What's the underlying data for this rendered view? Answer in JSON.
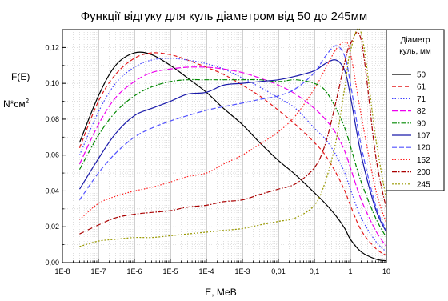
{
  "chart_data": {
    "type": "line",
    "title": "Функції відгуку для куль діаметром від 50 до 245мм",
    "xlabel": "E, МеВ",
    "ylabel": "F(E)",
    "ylabel_unit": "N*см",
    "ylabel_unit_sup": "2",
    "x_scale": "log",
    "xlim": [
      1e-08,
      10
    ],
    "ylim": [
      0,
      0.13
    ],
    "grid": true,
    "legend_position": "right",
    "x_ticks": [
      1e-08,
      1e-07,
      1e-06,
      1e-05,
      0.0001,
      0.001,
      0.01,
      0.1,
      1,
      10
    ],
    "x_tick_labels": [
      "1E-8",
      "1E-7",
      "1E-6",
      "1E-5",
      "1E-4",
      "1E-3",
      "0,01",
      "0,1",
      "1",
      "10"
    ],
    "y_ticks": [
      0,
      0.02,
      0.04,
      0.06,
      0.08,
      0.1,
      0.12
    ],
    "y_tick_labels": [
      "0,00",
      "0,02",
      "0,04",
      "0,06",
      "0,08",
      "0,10",
      "0,12"
    ],
    "legend_title": [
      "Діаметр",
      "куль, мм"
    ],
    "x": [
      3e-08,
      1e-07,
      3e-07,
      1e-06,
      3e-06,
      1e-05,
      3e-05,
      0.0001,
      0.0003,
      0.001,
      0.003,
      0.01,
      0.03,
      0.1,
      0.2,
      0.4,
      0.7,
      1,
      2,
      5,
      10
    ],
    "series": [
      {
        "name": "50",
        "color": "#000000",
        "dash": "",
        "width": 1.2,
        "values": [
          0.067,
          0.093,
          0.11,
          0.117,
          0.116,
          0.11,
          0.103,
          0.095,
          0.086,
          0.077,
          0.067,
          0.057,
          0.049,
          0.039,
          0.033,
          0.026,
          0.019,
          0.013,
          0.006,
          0.002,
          0.001
        ]
      },
      {
        "name": "61",
        "color": "#e41a1c",
        "dash": "5,3",
        "width": 1.2,
        "values": [
          0.064,
          0.09,
          0.105,
          0.114,
          0.117,
          0.116,
          0.113,
          0.109,
          0.105,
          0.099,
          0.093,
          0.085,
          0.077,
          0.067,
          0.06,
          0.05,
          0.04,
          0.032,
          0.018,
          0.008,
          0.004
        ]
      },
      {
        "name": "71",
        "color": "#4040ff",
        "dash": "1.5,2",
        "width": 1.2,
        "values": [
          0.06,
          0.084,
          0.1,
          0.109,
          0.113,
          0.114,
          0.113,
          0.111,
          0.108,
          0.103,
          0.098,
          0.092,
          0.086,
          0.075,
          0.069,
          0.06,
          0.05,
          0.041,
          0.025,
          0.012,
          0.006
        ]
      },
      {
        "name": "82",
        "color": "#ee00ee",
        "dash": "7,3",
        "width": 1.2,
        "values": [
          0.055,
          0.077,
          0.092,
          0.101,
          0.106,
          0.108,
          0.109,
          0.109,
          0.108,
          0.106,
          0.103,
          0.099,
          0.094,
          0.086,
          0.08,
          0.072,
          0.062,
          0.053,
          0.035,
          0.018,
          0.009
        ]
      },
      {
        "name": "90",
        "color": "#008800",
        "dash": "6,2,1.5,2",
        "width": 1.2,
        "values": [
          0.052,
          0.071,
          0.084,
          0.093,
          0.098,
          0.101,
          0.102,
          0.102,
          0.102,
          0.102,
          0.102,
          0.101,
          0.102,
          0.1,
          0.096,
          0.086,
          0.075,
          0.065,
          0.045,
          0.025,
          0.014
        ]
      },
      {
        "name": "107",
        "color": "#1a1aaa",
        "dash": "",
        "width": 1.2,
        "values": [
          0.041,
          0.058,
          0.072,
          0.082,
          0.086,
          0.09,
          0.094,
          0.095,
          0.099,
          0.1,
          0.101,
          0.102,
          0.104,
          0.107,
          0.111,
          0.113,
          0.107,
          0.093,
          0.06,
          0.03,
          0.017
        ]
      },
      {
        "name": "120",
        "color": "#5050ff",
        "dash": "6,3",
        "width": 1.2,
        "values": [
          0.035,
          0.05,
          0.061,
          0.07,
          0.075,
          0.079,
          0.082,
          0.085,
          0.087,
          0.089,
          0.091,
          0.093,
          0.097,
          0.106,
          0.115,
          0.121,
          0.115,
          0.1,
          0.065,
          0.032,
          0.018
        ]
      },
      {
        "name": "152",
        "color": "#ff2020",
        "dash": "1.5,2",
        "width": 1.2,
        "values": [
          0.024,
          0.033,
          0.037,
          0.04,
          0.042,
          0.045,
          0.048,
          0.05,
          0.055,
          0.06,
          0.066,
          0.073,
          0.082,
          0.097,
          0.108,
          0.119,
          0.123,
          0.117,
          0.082,
          0.041,
          0.022
        ]
      },
      {
        "name": "200",
        "color": "#aa0000",
        "dash": "6,2,1.5,2",
        "width": 1.2,
        "values": [
          0.016,
          0.021,
          0.025,
          0.027,
          0.028,
          0.029,
          0.031,
          0.032,
          0.034,
          0.035,
          0.038,
          0.041,
          0.044,
          0.053,
          0.066,
          0.09,
          0.112,
          0.122,
          0.124,
          0.06,
          0.03
        ]
      },
      {
        "name": "245",
        "color": "#999900",
        "dash": "2,2",
        "width": 1.2,
        "values": [
          0.009,
          0.012,
          0.013,
          0.014,
          0.014,
          0.015,
          0.016,
          0.017,
          0.018,
          0.019,
          0.021,
          0.023,
          0.025,
          0.032,
          0.045,
          0.068,
          0.098,
          0.118,
          0.128,
          0.07,
          0.035
        ]
      }
    ]
  }
}
